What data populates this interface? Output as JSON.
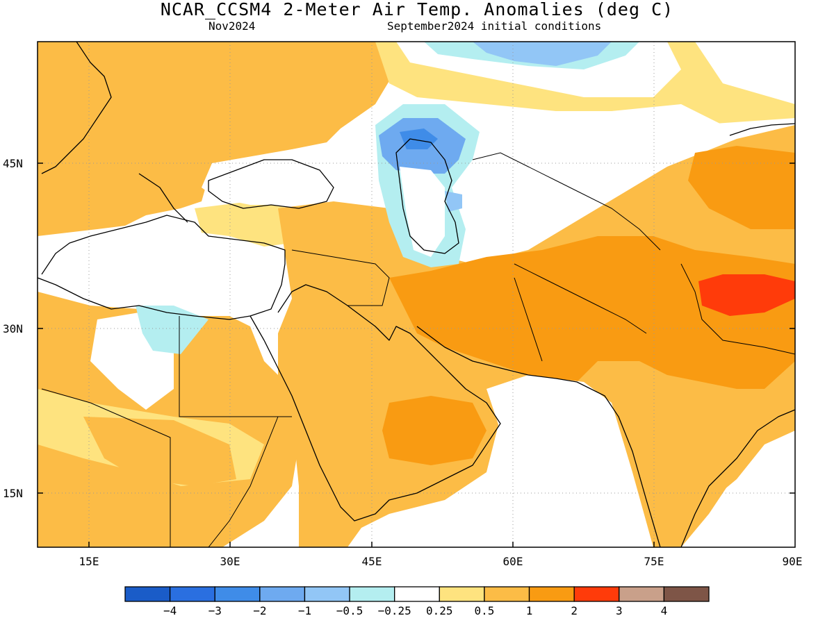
{
  "title": "NCAR_CCSM4 2-Meter Air Temp. Anomalies (deg C)",
  "subtitle_left": "Nov2024",
  "subtitle_right": "September2024 initial conditions",
  "map": {
    "lat_labels": [
      "45N",
      "30N",
      "15N"
    ],
    "lon_labels": [
      "15E",
      "30E",
      "45E",
      "60E",
      "75E",
      "90E"
    ]
  },
  "colorbar": {
    "colors": [
      "#1a5cc8",
      "#2a6fe0",
      "#3f8ce8",
      "#6eaaf0",
      "#92c6f6",
      "#b4eef0",
      "#ffffff",
      "#fee37f",
      "#fcbc46",
      "#f99b12",
      "#ff3b0a",
      "#c9a08a",
      "#7e5547"
    ],
    "labels": [
      "−4",
      "−3",
      "−2",
      "−1",
      "−0.5",
      "−0.25",
      "0.25",
      "0.5",
      "1",
      "2",
      "3",
      "4"
    ]
  }
}
